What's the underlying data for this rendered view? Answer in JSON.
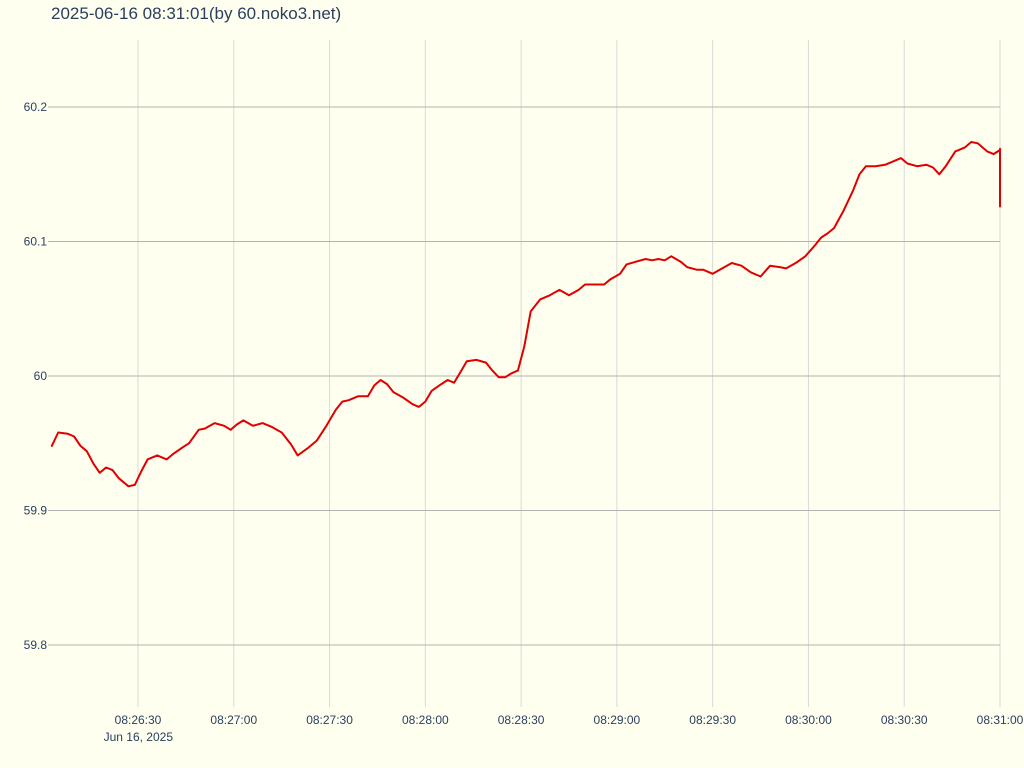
{
  "chart_data": {
    "type": "line",
    "title": "2025-06-16 08:31:01(by 60.noko3.net)",
    "xlabel": "",
    "ylabel": "",
    "x_range": [
      "2025-06-16 08:26:00",
      "2025-06-16 08:31:00"
    ],
    "ylim": [
      59.75,
      60.25
    ],
    "grid": true,
    "line_color": "#e00000",
    "y_ticks": [
      {
        "value": 59.8,
        "label": "59.8"
      },
      {
        "value": 59.9,
        "label": "59.9"
      },
      {
        "value": 60.0,
        "label": "60"
      },
      {
        "value": 60.1,
        "label": "60.1"
      },
      {
        "value": 60.2,
        "label": "60.2"
      }
    ],
    "x_ticks": [
      {
        "time": "2025-06-16 08:26:30",
        "label": "08:26:30",
        "sublabel": "Jun 16, 2025"
      },
      {
        "time": "2025-06-16 08:27:00",
        "label": "08:27:00"
      },
      {
        "time": "2025-06-16 08:27:30",
        "label": "08:27:30"
      },
      {
        "time": "2025-06-16 08:28:00",
        "label": "08:28:00"
      },
      {
        "time": "2025-06-16 08:28:30",
        "label": "08:28:30"
      },
      {
        "time": "2025-06-16 08:29:00",
        "label": "08:29:00"
      },
      {
        "time": "2025-06-16 08:29:30",
        "label": "08:29:30"
      },
      {
        "time": "2025-06-16 08:30:00",
        "label": "08:30:00"
      },
      {
        "time": "2025-06-16 08:30:30",
        "label": "08:30:30"
      },
      {
        "time": "2025-06-16 08:31:00",
        "label": "08:31:00"
      }
    ],
    "series": [
      {
        "points": [
          [
            "08:26:03",
            59.948
          ],
          [
            "08:26:05",
            59.958
          ],
          [
            "08:26:08",
            59.957
          ],
          [
            "08:26:10",
            59.955
          ],
          [
            "08:26:12",
            59.948
          ],
          [
            "08:26:14",
            59.944
          ],
          [
            "08:26:16",
            59.935
          ],
          [
            "08:26:18",
            59.928
          ],
          [
            "08:26:20",
            59.932
          ],
          [
            "08:26:22",
            59.93
          ],
          [
            "08:26:24",
            59.924
          ],
          [
            "08:26:27",
            59.918
          ],
          [
            "08:26:29",
            59.919
          ],
          [
            "08:26:31",
            59.929
          ],
          [
            "08:26:33",
            59.938
          ],
          [
            "08:26:36",
            59.941
          ],
          [
            "08:26:39",
            59.938
          ],
          [
            "08:26:41",
            59.942
          ],
          [
            "08:26:44",
            59.947
          ],
          [
            "08:26:46",
            59.95
          ],
          [
            "08:26:49",
            59.96
          ],
          [
            "08:26:51",
            59.961
          ],
          [
            "08:26:54",
            59.965
          ],
          [
            "08:26:57",
            59.963
          ],
          [
            "08:26:59",
            59.96
          ],
          [
            "08:27:01",
            59.964
          ],
          [
            "08:27:03",
            59.967
          ],
          [
            "08:27:06",
            59.963
          ],
          [
            "08:27:09",
            59.965
          ],
          [
            "08:27:12",
            59.962
          ],
          [
            "08:27:15",
            59.958
          ],
          [
            "08:27:18",
            59.949
          ],
          [
            "08:27:20",
            59.941
          ],
          [
            "08:27:23",
            59.946
          ],
          [
            "08:27:26",
            59.952
          ],
          [
            "08:27:29",
            59.963
          ],
          [
            "08:27:32",
            59.975
          ],
          [
            "08:27:34",
            59.981
          ],
          [
            "08:27:36",
            59.982
          ],
          [
            "08:27:39",
            59.985
          ],
          [
            "08:27:42",
            59.985
          ],
          [
            "08:27:44",
            59.993
          ],
          [
            "08:27:46",
            59.997
          ],
          [
            "08:27:48",
            59.994
          ],
          [
            "08:27:50",
            59.988
          ],
          [
            "08:27:53",
            59.984
          ],
          [
            "08:27:56",
            59.979
          ],
          [
            "08:27:58",
            59.977
          ],
          [
            "08:28:00",
            59.981
          ],
          [
            "08:28:02",
            59.989
          ],
          [
            "08:28:05",
            59.994
          ],
          [
            "08:28:07",
            59.997
          ],
          [
            "08:28:09",
            59.995
          ],
          [
            "08:28:11",
            60.003
          ],
          [
            "08:28:13",
            60.011
          ],
          [
            "08:28:16",
            60.012
          ],
          [
            "08:28:19",
            60.01
          ],
          [
            "08:28:21",
            60.004
          ],
          [
            "08:28:23",
            59.999
          ],
          [
            "08:28:25",
            59.999
          ],
          [
            "08:28:27",
            60.002
          ],
          [
            "08:28:29",
            60.004
          ],
          [
            "08:28:31",
            60.022
          ],
          [
            "08:28:33",
            60.048
          ],
          [
            "08:28:36",
            60.057
          ],
          [
            "08:28:39",
            60.06
          ],
          [
            "08:28:42",
            60.064
          ],
          [
            "08:28:45",
            60.06
          ],
          [
            "08:28:48",
            60.064
          ],
          [
            "08:28:50",
            60.068
          ],
          [
            "08:28:53",
            60.068
          ],
          [
            "08:28:56",
            60.068
          ],
          [
            "08:28:58",
            60.072
          ],
          [
            "08:29:01",
            60.076
          ],
          [
            "08:29:03",
            60.083
          ],
          [
            "08:29:06",
            60.085
          ],
          [
            "08:29:09",
            60.087
          ],
          [
            "08:29:11",
            60.086
          ],
          [
            "08:29:13",
            60.087
          ],
          [
            "08:29:15",
            60.086
          ],
          [
            "08:29:17",
            60.089
          ],
          [
            "08:29:20",
            60.085
          ],
          [
            "08:29:22",
            60.081
          ],
          [
            "08:29:25",
            60.079
          ],
          [
            "08:29:27",
            60.079
          ],
          [
            "08:29:30",
            60.076
          ],
          [
            "08:29:33",
            60.08
          ],
          [
            "08:29:36",
            60.084
          ],
          [
            "08:29:39",
            60.082
          ],
          [
            "08:29:42",
            60.077
          ],
          [
            "08:29:45",
            60.074
          ],
          [
            "08:29:48",
            60.082
          ],
          [
            "08:29:51",
            60.081
          ],
          [
            "08:29:53",
            60.08
          ],
          [
            "08:29:56",
            60.084
          ],
          [
            "08:29:59",
            60.089
          ],
          [
            "08:30:02",
            60.097
          ],
          [
            "08:30:04",
            60.103
          ],
          [
            "08:30:06",
            60.106
          ],
          [
            "08:30:08",
            60.11
          ],
          [
            "08:30:11",
            60.123
          ],
          [
            "08:30:14",
            60.138
          ],
          [
            "08:30:16",
            60.15
          ],
          [
            "08:30:18",
            60.156
          ],
          [
            "08:30:21",
            60.156
          ],
          [
            "08:30:24",
            60.157
          ],
          [
            "08:30:27",
            60.16
          ],
          [
            "08:30:29",
            60.162
          ],
          [
            "08:30:31",
            60.158
          ],
          [
            "08:30:34",
            60.156
          ],
          [
            "08:30:37",
            60.157
          ],
          [
            "08:30:39",
            60.155
          ],
          [
            "08:30:41",
            60.15
          ],
          [
            "08:30:43",
            60.156
          ],
          [
            "08:30:46",
            60.167
          ],
          [
            "08:30:49",
            60.17
          ],
          [
            "08:30:51",
            60.174
          ],
          [
            "08:30:53",
            60.173
          ],
          [
            "08:30:56",
            60.167
          ],
          [
            "08:30:58",
            60.165
          ],
          [
            "08:31:00",
            60.168
          ],
          [
            "08:31:03",
            60.169
          ],
          [
            "08:31:05",
            60.156
          ],
          [
            "08:31:08",
            60.148
          ],
          [
            "08:31:11",
            60.14
          ],
          [
            "08:31:14",
            60.137
          ],
          [
            "08:31:17",
            60.133
          ],
          [
            "08:31:20",
            60.126
          ]
        ]
      }
    ]
  }
}
